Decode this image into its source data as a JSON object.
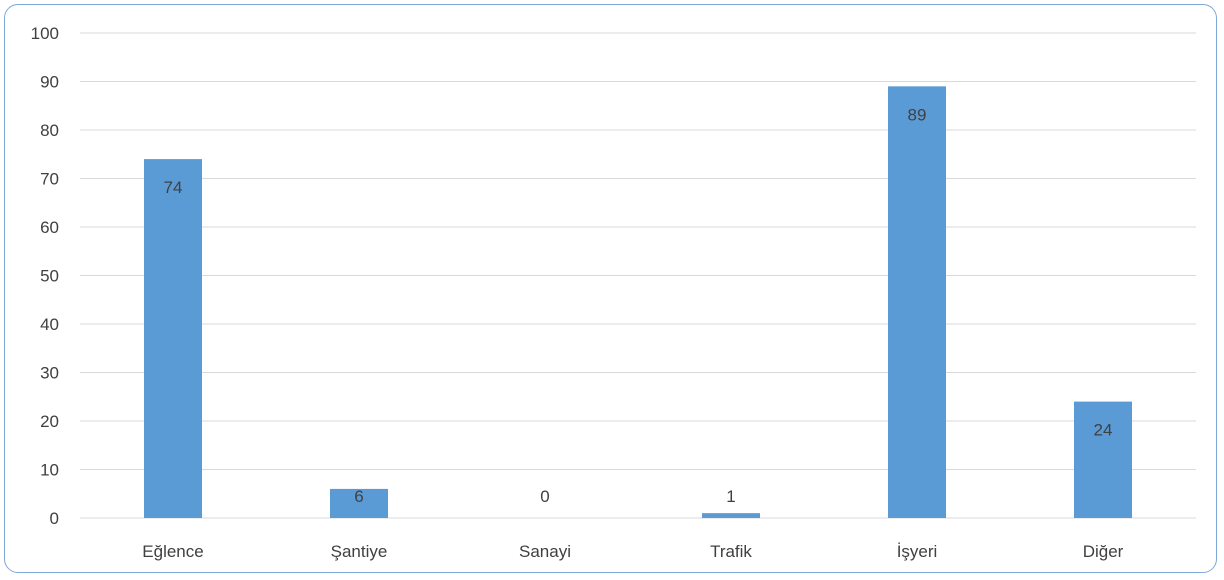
{
  "chart_data": {
    "type": "bar",
    "categories": [
      "Eğlence",
      "Şantiye",
      "Sanayi",
      "Trafik",
      "İşyeri",
      "Diğer"
    ],
    "values": [
      74,
      6,
      0,
      1,
      89,
      24
    ],
    "data_labels": [
      "74",
      "6",
      "0",
      "1",
      "89",
      "24"
    ],
    "title": "",
    "xlabel": "",
    "ylabel": "",
    "ylim": [
      0,
      100
    ],
    "yticks": [
      0,
      10,
      20,
      30,
      40,
      50,
      60,
      70,
      80,
      90,
      100
    ],
    "grid": true,
    "legend": "none",
    "bar_color": "#5b9bd5",
    "grid_color": "#d9d9d9",
    "text_color": "#404040",
    "frame_color": "#7fa8d8"
  }
}
